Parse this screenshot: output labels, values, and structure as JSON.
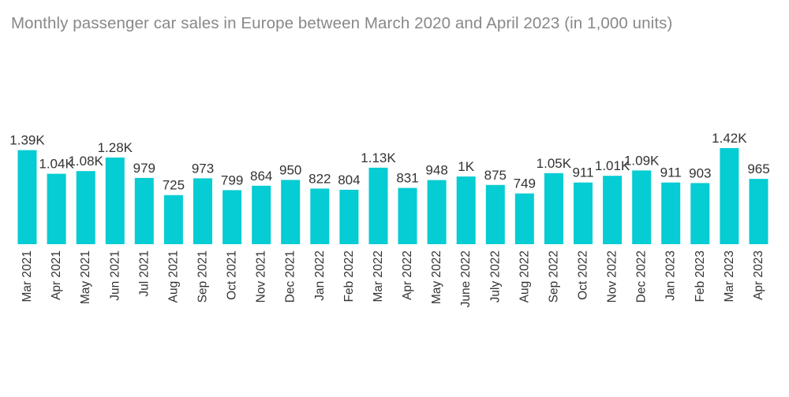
{
  "chart_data": {
    "type": "bar",
    "title": "Monthly passenger car sales in Europe between March 2020 and April 2023 (in 1,000 units)",
    "xlabel": "",
    "ylabel": "",
    "categories": [
      "Mar 2021",
      "Apr 2021",
      "May 2021",
      "Jun 2021",
      "Jul 2021",
      "Aug 2021",
      "Sep 2021",
      "Oct 2021",
      "Nov 2021",
      "Dec 2021",
      "Jan 2022",
      "Feb 2022",
      "Mar 2022",
      "Apr 2022",
      "May 2022",
      "June 2022",
      "July 2022",
      "Aug 2022",
      "Sep 2022",
      "Oct 2022",
      "Nov 2022",
      "Dec 2022",
      "Jan 2023",
      "Feb 2023",
      "Mar 2023",
      "Apr 2023"
    ],
    "values": [
      1390,
      1040,
      1080,
      1280,
      979,
      725,
      973,
      799,
      864,
      950,
      822,
      804,
      1130,
      831,
      948,
      1000,
      875,
      749,
      1050,
      911,
      1010,
      1090,
      911,
      903,
      1420,
      965
    ],
    "labels": [
      "1.39K",
      "1.04K",
      "1.08K",
      "1.28K",
      "979",
      "725",
      "973",
      "799",
      "864",
      "950",
      "822",
      "804",
      "1.13K",
      "831",
      "948",
      "1K",
      "875",
      "749",
      "1.05K",
      "911",
      "1.01K",
      "1.09K",
      "911",
      "903",
      "1.42K",
      "965"
    ],
    "ylim": [
      0,
      1420
    ],
    "grid": false,
    "legend": "none",
    "bar_color": "#06ccd3"
  }
}
